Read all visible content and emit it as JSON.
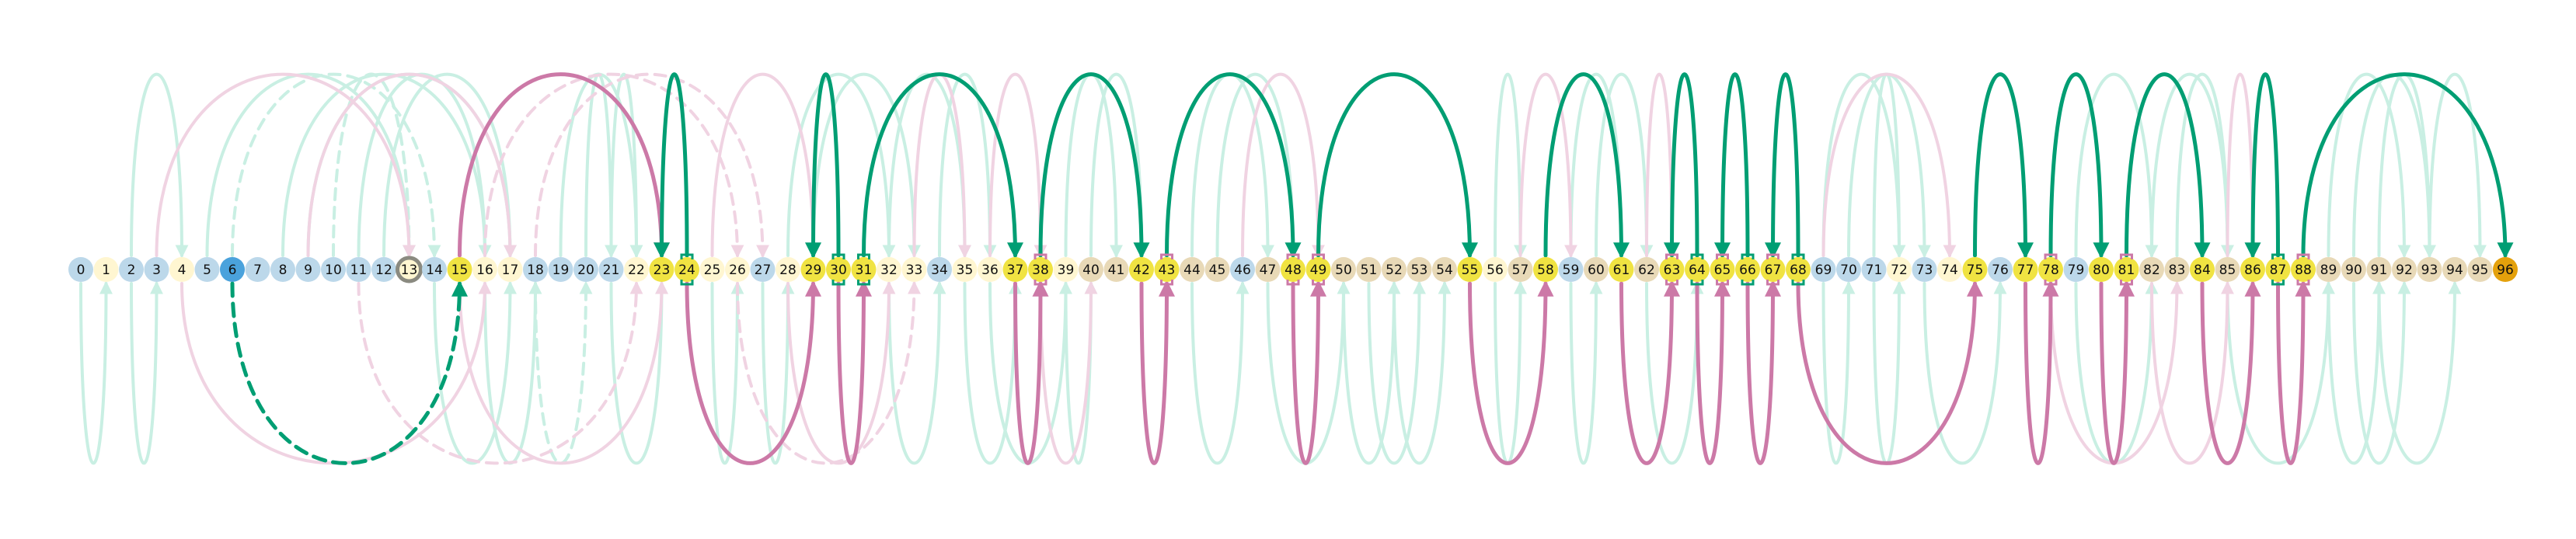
{
  "colors": {
    "background": "#ffffff",
    "node_default": "#fff6d1",
    "node_blue_light": "#bcd8ea",
    "node_blue_dark": "#4aa2dc",
    "node_yellow": "#f0e342",
    "node_tan": "#e8d9b7",
    "node_orange": "#e4a10c",
    "node_ring": "#8a8a80",
    "arc_green_strong": "#009e73",
    "arc_green_faint": "#c9efe3",
    "arc_pink_strong": "#cc79a7",
    "arc_pink_faint": "#f0d3e2",
    "marker_green": "#009e73",
    "marker_pink": "#cc79a7"
  },
  "diagram": {
    "type": "arc-diagram",
    "node_count": 97,
    "nodes": [
      {
        "id": "0",
        "style": "blue_light"
      },
      {
        "id": "1",
        "style": "default"
      },
      {
        "id": "2",
        "style": "blue_light"
      },
      {
        "id": "3",
        "style": "blue_light"
      },
      {
        "id": "4",
        "style": "default"
      },
      {
        "id": "5",
        "style": "blue_light"
      },
      {
        "id": "6",
        "style": "blue_dark"
      },
      {
        "id": "7",
        "style": "blue_light"
      },
      {
        "id": "8",
        "style": "blue_light"
      },
      {
        "id": "9",
        "style": "blue_light"
      },
      {
        "id": "10",
        "style": "blue_light"
      },
      {
        "id": "11",
        "style": "blue_light"
      },
      {
        "id": "12",
        "style": "blue_light"
      },
      {
        "id": "13",
        "style": "ring"
      },
      {
        "id": "14",
        "style": "blue_light"
      },
      {
        "id": "15",
        "style": "yellow"
      },
      {
        "id": "16",
        "style": "default"
      },
      {
        "id": "17",
        "style": "default"
      },
      {
        "id": "18",
        "style": "blue_light"
      },
      {
        "id": "19",
        "style": "blue_light"
      },
      {
        "id": "20",
        "style": "blue_light"
      },
      {
        "id": "21",
        "style": "blue_light"
      },
      {
        "id": "22",
        "style": "default"
      },
      {
        "id": "23",
        "style": "yellow"
      },
      {
        "id": "24",
        "style": "yellow",
        "marker": "green"
      },
      {
        "id": "25",
        "style": "default"
      },
      {
        "id": "26",
        "style": "default"
      },
      {
        "id": "27",
        "style": "blue_light"
      },
      {
        "id": "28",
        "style": "default"
      },
      {
        "id": "29",
        "style": "yellow"
      },
      {
        "id": "30",
        "style": "yellow",
        "marker": "green"
      },
      {
        "id": "31",
        "style": "yellow",
        "marker": "green"
      },
      {
        "id": "32",
        "style": "default"
      },
      {
        "id": "33",
        "style": "default"
      },
      {
        "id": "34",
        "style": "blue_light"
      },
      {
        "id": "35",
        "style": "default"
      },
      {
        "id": "36",
        "style": "default"
      },
      {
        "id": "37",
        "style": "yellow"
      },
      {
        "id": "38",
        "style": "yellow",
        "marker": "pink"
      },
      {
        "id": "39",
        "style": "default"
      },
      {
        "id": "40",
        "style": "tan"
      },
      {
        "id": "41",
        "style": "tan"
      },
      {
        "id": "42",
        "style": "yellow"
      },
      {
        "id": "43",
        "style": "yellow",
        "marker": "pink"
      },
      {
        "id": "44",
        "style": "tan"
      },
      {
        "id": "45",
        "style": "tan"
      },
      {
        "id": "46",
        "style": "blue_light"
      },
      {
        "id": "47",
        "style": "tan"
      },
      {
        "id": "48",
        "style": "yellow",
        "marker": "pink"
      },
      {
        "id": "49",
        "style": "yellow",
        "marker": "pink"
      },
      {
        "id": "50",
        "style": "tan"
      },
      {
        "id": "51",
        "style": "tan"
      },
      {
        "id": "52",
        "style": "tan"
      },
      {
        "id": "53",
        "style": "tan"
      },
      {
        "id": "54",
        "style": "tan"
      },
      {
        "id": "55",
        "style": "yellow"
      },
      {
        "id": "56",
        "style": "default"
      },
      {
        "id": "57",
        "style": "tan"
      },
      {
        "id": "58",
        "style": "yellow"
      },
      {
        "id": "59",
        "style": "blue_light"
      },
      {
        "id": "60",
        "style": "tan"
      },
      {
        "id": "61",
        "style": "yellow"
      },
      {
        "id": "62",
        "style": "tan"
      },
      {
        "id": "63",
        "style": "yellow",
        "marker": "pink"
      },
      {
        "id": "64",
        "style": "yellow",
        "marker": "green"
      },
      {
        "id": "65",
        "style": "yellow",
        "marker": "pink"
      },
      {
        "id": "66",
        "style": "yellow",
        "marker": "green"
      },
      {
        "id": "67",
        "style": "yellow",
        "marker": "pink"
      },
      {
        "id": "68",
        "style": "yellow",
        "marker": "green"
      },
      {
        "id": "69",
        "style": "blue_light"
      },
      {
        "id": "70",
        "style": "blue_light"
      },
      {
        "id": "71",
        "style": "blue_light"
      },
      {
        "id": "72",
        "style": "default"
      },
      {
        "id": "73",
        "style": "blue_light"
      },
      {
        "id": "74",
        "style": "default"
      },
      {
        "id": "75",
        "style": "yellow"
      },
      {
        "id": "76",
        "style": "blue_light"
      },
      {
        "id": "77",
        "style": "yellow"
      },
      {
        "id": "78",
        "style": "yellow",
        "marker": "pink"
      },
      {
        "id": "79",
        "style": "blue_light"
      },
      {
        "id": "80",
        "style": "yellow"
      },
      {
        "id": "81",
        "style": "yellow",
        "marker": "pink"
      },
      {
        "id": "82",
        "style": "tan"
      },
      {
        "id": "83",
        "style": "tan"
      },
      {
        "id": "84",
        "style": "yellow"
      },
      {
        "id": "85",
        "style": "tan"
      },
      {
        "id": "86",
        "style": "yellow"
      },
      {
        "id": "87",
        "style": "yellow",
        "marker": "green"
      },
      {
        "id": "88",
        "style": "yellow",
        "marker": "pink"
      },
      {
        "id": "89",
        "style": "tan"
      },
      {
        "id": "90",
        "style": "tan"
      },
      {
        "id": "91",
        "style": "tan"
      },
      {
        "id": "92",
        "style": "tan"
      },
      {
        "id": "93",
        "style": "tan"
      },
      {
        "id": "94",
        "style": "tan"
      },
      {
        "id": "95",
        "style": "tan"
      },
      {
        "id": "96",
        "style": "orange"
      }
    ],
    "edges": [
      {
        "from": "15",
        "to": "23",
        "side": "top",
        "style": "pink_strong"
      },
      {
        "from": "24",
        "to": "23",
        "side": "top",
        "style": "green_strong"
      },
      {
        "from": "30",
        "to": "29",
        "side": "top",
        "style": "green_strong"
      },
      {
        "from": "31",
        "to": "37",
        "side": "top",
        "style": "green_strong"
      },
      {
        "from": "38",
        "to": "42",
        "side": "top",
        "style": "green_strong"
      },
      {
        "from": "43",
        "to": "48",
        "side": "top",
        "style": "green_strong"
      },
      {
        "from": "49",
        "to": "55",
        "side": "top",
        "style": "green_strong"
      },
      {
        "from": "58",
        "to": "61",
        "side": "top",
        "style": "green_strong"
      },
      {
        "from": "64",
        "to": "63",
        "side": "top",
        "style": "green_strong"
      },
      {
        "from": "66",
        "to": "65",
        "side": "top",
        "style": "green_strong"
      },
      {
        "from": "68",
        "to": "67",
        "side": "top",
        "style": "green_strong"
      },
      {
        "from": "75",
        "to": "77",
        "side": "top",
        "style": "green_strong"
      },
      {
        "from": "78",
        "to": "80",
        "side": "top",
        "style": "green_strong"
      },
      {
        "from": "81",
        "to": "84",
        "side": "top",
        "style": "green_strong"
      },
      {
        "from": "87",
        "to": "86",
        "side": "top",
        "style": "green_strong"
      },
      {
        "from": "88",
        "to": "96",
        "side": "top",
        "style": "green_strong"
      },
      {
        "from": "6",
        "to": "15",
        "side": "bottom",
        "style": "green_strong_dashed"
      },
      {
        "from": "24",
        "to": "29",
        "side": "bottom",
        "style": "pink_strong"
      },
      {
        "from": "30",
        "to": "31",
        "side": "bottom",
        "style": "pink_strong"
      },
      {
        "from": "37",
        "to": "38",
        "side": "bottom",
        "style": "pink_strong"
      },
      {
        "from": "42",
        "to": "43",
        "side": "bottom",
        "style": "pink_strong"
      },
      {
        "from": "48",
        "to": "49",
        "side": "bottom",
        "style": "pink_strong"
      },
      {
        "from": "55",
        "to": "58",
        "side": "bottom",
        "style": "pink_strong"
      },
      {
        "from": "61",
        "to": "63",
        "side": "bottom",
        "style": "pink_strong"
      },
      {
        "from": "64",
        "to": "65",
        "side": "bottom",
        "style": "pink_strong"
      },
      {
        "from": "66",
        "to": "67",
        "side": "bottom",
        "style": "pink_strong"
      },
      {
        "from": "68",
        "to": "75",
        "side": "bottom",
        "style": "pink_strong"
      },
      {
        "from": "77",
        "to": "78",
        "side": "bottom",
        "style": "pink_strong"
      },
      {
        "from": "80",
        "to": "81",
        "side": "bottom",
        "style": "pink_strong"
      },
      {
        "from": "84",
        "to": "86",
        "side": "bottom",
        "style": "pink_strong"
      },
      {
        "from": "87",
        "to": "88",
        "side": "bottom",
        "style": "pink_strong"
      },
      {
        "from": "2",
        "to": "4",
        "side": "top",
        "style": "green_faint"
      },
      {
        "from": "5",
        "to": "13",
        "side": "top",
        "style": "green_faint"
      },
      {
        "from": "6",
        "to": "14",
        "side": "top",
        "style": "green_faint_dashed"
      },
      {
        "from": "8",
        "to": "16",
        "side": "top",
        "style": "green_faint"
      },
      {
        "from": "9",
        "to": "17",
        "side": "top",
        "style": "green_faint"
      },
      {
        "from": "10",
        "to": "13",
        "side": "top",
        "style": "green_faint_dashed"
      },
      {
        "from": "11",
        "to": "16",
        "side": "top",
        "style": "green_faint"
      },
      {
        "from": "12",
        "to": "17",
        "side": "top",
        "style": "green_faint"
      },
      {
        "from": "19",
        "to": "22",
        "side": "top",
        "style": "green_faint"
      },
      {
        "from": "20",
        "to": "21",
        "side": "top",
        "style": "green_faint"
      },
      {
        "from": "21",
        "to": "22",
        "side": "top",
        "style": "green_faint"
      },
      {
        "from": "28",
        "to": "32",
        "side": "top",
        "style": "green_faint"
      },
      {
        "from": "29",
        "to": "33",
        "side": "top",
        "style": "green_faint"
      },
      {
        "from": "32",
        "to": "35",
        "side": "top",
        "style": "green_faint"
      },
      {
        "from": "34",
        "to": "36",
        "side": "top",
        "style": "green_faint"
      },
      {
        "from": "39",
        "to": "41",
        "side": "top",
        "style": "green_faint"
      },
      {
        "from": "40",
        "to": "42",
        "side": "top",
        "style": "green_faint"
      },
      {
        "from": "44",
        "to": "47",
        "side": "top",
        "style": "green_faint"
      },
      {
        "from": "45",
        "to": "48",
        "side": "top",
        "style": "green_faint"
      },
      {
        "from": "56",
        "to": "57",
        "side": "top",
        "style": "green_faint"
      },
      {
        "from": "59",
        "to": "61",
        "side": "top",
        "style": "green_faint"
      },
      {
        "from": "60",
        "to": "62",
        "side": "top",
        "style": "green_faint"
      },
      {
        "from": "69",
        "to": "72",
        "side": "top",
        "style": "green_faint"
      },
      {
        "from": "70",
        "to": "73",
        "side": "top",
        "style": "green_faint"
      },
      {
        "from": "71",
        "to": "72",
        "side": "top",
        "style": "green_faint"
      },
      {
        "from": "79",
        "to": "82",
        "side": "top",
        "style": "green_faint"
      },
      {
        "from": "82",
        "to": "85",
        "side": "top",
        "style": "green_faint"
      },
      {
        "from": "83",
        "to": "85",
        "side": "top",
        "style": "green_faint"
      },
      {
        "from": "89",
        "to": "92",
        "side": "top",
        "style": "green_faint"
      },
      {
        "from": "90",
        "to": "93",
        "side": "top",
        "style": "green_faint"
      },
      {
        "from": "91",
        "to": "93",
        "side": "top",
        "style": "green_faint"
      },
      {
        "from": "93",
        "to": "95",
        "side": "top",
        "style": "green_faint"
      },
      {
        "from": "3",
        "to": "13",
        "side": "top",
        "style": "pink_faint"
      },
      {
        "from": "9",
        "to": "17",
        "side": "top",
        "style": "pink_faint"
      },
      {
        "from": "16",
        "to": "26",
        "side": "top",
        "style": "pink_faint_dashed"
      },
      {
        "from": "18",
        "to": "27",
        "side": "top",
        "style": "pink_faint_dashed"
      },
      {
        "from": "25",
        "to": "29",
        "side": "top",
        "style": "pink_faint"
      },
      {
        "from": "33",
        "to": "35",
        "side": "top",
        "style": "pink_faint"
      },
      {
        "from": "36",
        "to": "38",
        "side": "top",
        "style": "pink_faint"
      },
      {
        "from": "46",
        "to": "49",
        "side": "top",
        "style": "pink_faint"
      },
      {
        "from": "57",
        "to": "59",
        "side": "top",
        "style": "pink_faint"
      },
      {
        "from": "62",
        "to": "63",
        "side": "top",
        "style": "pink_faint"
      },
      {
        "from": "69",
        "to": "74",
        "side": "top",
        "style": "pink_faint"
      },
      {
        "from": "85",
        "to": "86",
        "side": "top",
        "style": "pink_faint"
      },
      {
        "from": "0",
        "to": "1",
        "side": "bottom",
        "style": "green_faint"
      },
      {
        "from": "2",
        "to": "3",
        "side": "bottom",
        "style": "green_faint"
      },
      {
        "from": "14",
        "to": "17",
        "side": "bottom",
        "style": "green_faint"
      },
      {
        "from": "16",
        "to": "18",
        "side": "bottom",
        "style": "green_faint"
      },
      {
        "from": "18",
        "to": "20",
        "side": "bottom",
        "style": "green_faint_dashed"
      },
      {
        "from": "21",
        "to": "23",
        "side": "bottom",
        "style": "green_faint"
      },
      {
        "from": "25",
        "to": "26",
        "side": "bottom",
        "style": "green_faint"
      },
      {
        "from": "27",
        "to": "28",
        "side": "bottom",
        "style": "green_faint"
      },
      {
        "from": "32",
        "to": "34",
        "side": "bottom",
        "style": "green_faint"
      },
      {
        "from": "35",
        "to": "37",
        "side": "bottom",
        "style": "green_faint"
      },
      {
        "from": "36",
        "to": "39",
        "side": "bottom",
        "style": "green_faint"
      },
      {
        "from": "39",
        "to": "40",
        "side": "bottom",
        "style": "green_faint"
      },
      {
        "from": "44",
        "to": "46",
        "side": "bottom",
        "style": "green_faint"
      },
      {
        "from": "47",
        "to": "50",
        "side": "bottom",
        "style": "green_faint"
      },
      {
        "from": "50",
        "to": "52",
        "side": "bottom",
        "style": "green_faint"
      },
      {
        "from": "51",
        "to": "53",
        "side": "bottom",
        "style": "green_faint"
      },
      {
        "from": "52",
        "to": "54",
        "side": "bottom",
        "style": "green_faint"
      },
      {
        "from": "56",
        "to": "57",
        "side": "bottom",
        "style": "green_faint"
      },
      {
        "from": "59",
        "to": "60",
        "side": "bottom",
        "style": "green_faint"
      },
      {
        "from": "62",
        "to": "64",
        "side": "bottom",
        "style": "green_faint"
      },
      {
        "from": "69",
        "to": "70",
        "side": "bottom",
        "style": "green_faint"
      },
      {
        "from": "71",
        "to": "72",
        "side": "bottom",
        "style": "green_faint"
      },
      {
        "from": "73",
        "to": "76",
        "side": "bottom",
        "style": "green_faint"
      },
      {
        "from": "79",
        "to": "82",
        "side": "bottom",
        "style": "green_faint"
      },
      {
        "from": "85",
        "to": "89",
        "side": "bottom",
        "style": "green_faint"
      },
      {
        "from": "89",
        "to": "91",
        "side": "bottom",
        "style": "green_faint"
      },
      {
        "from": "90",
        "to": "92",
        "side": "bottom",
        "style": "green_faint"
      },
      {
        "from": "91",
        "to": "94",
        "side": "bottom",
        "style": "green_faint"
      },
      {
        "from": "4",
        "to": "16",
        "side": "bottom",
        "style": "pink_faint"
      },
      {
        "from": "11",
        "to": "22",
        "side": "bottom",
        "style": "pink_faint_dashed"
      },
      {
        "from": "15",
        "to": "23",
        "side": "bottom",
        "style": "pink_faint"
      },
      {
        "from": "26",
        "to": "33",
        "side": "bottom",
        "style": "pink_faint_dashed"
      },
      {
        "from": "28",
        "to": "32",
        "side": "bottom",
        "style": "pink_faint"
      },
      {
        "from": "38",
        "to": "40",
        "side": "bottom",
        "style": "pink_faint"
      },
      {
        "from": "78",
        "to": "83",
        "side": "bottom",
        "style": "pink_faint"
      },
      {
        "from": "82",
        "to": "85",
        "side": "bottom",
        "style": "pink_faint"
      }
    ]
  }
}
